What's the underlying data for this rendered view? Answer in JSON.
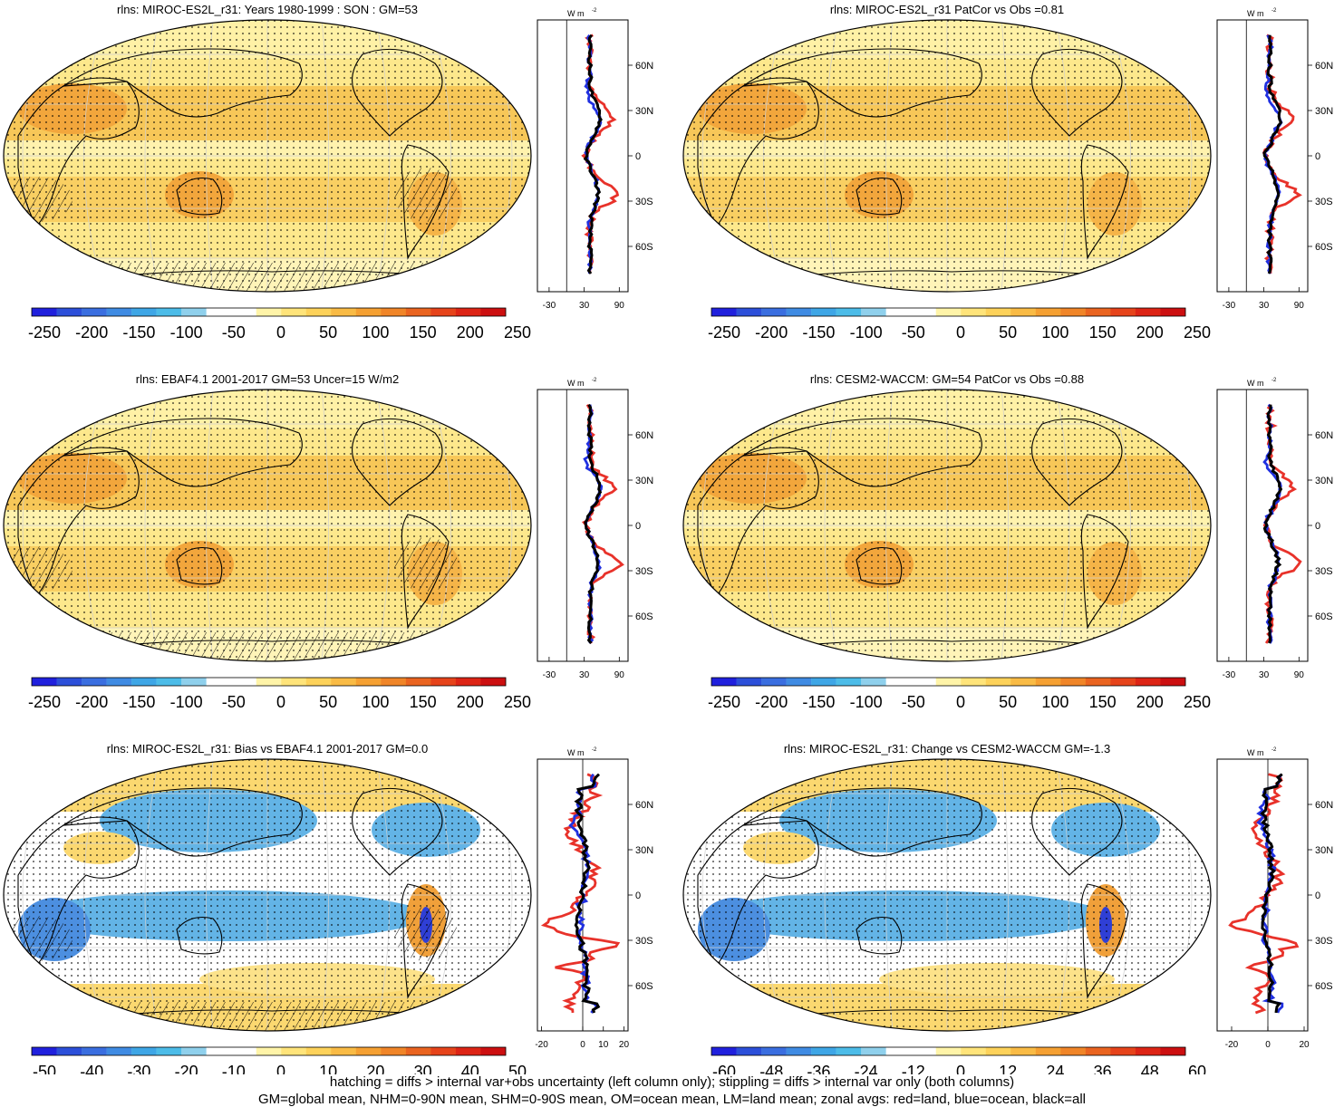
{
  "panels": [
    {
      "title": "rlns: MIROC-ES2L_r31: Years 1980-1999 : SON : GM=53",
      "type": "abs",
      "colorbar_labels": [
        "-250",
        "-200",
        "-150",
        "-100",
        "-50",
        "0",
        "50",
        "100",
        "150",
        "200",
        "250"
      ],
      "zonal": {
        "units": "W m",
        "units_sup": "-2",
        "x_ticks": [
          "-30",
          "30",
          "90"
        ],
        "x_range": [
          -50,
          105
        ],
        "lat_labels": [
          "60N",
          "30N",
          "0",
          "30S",
          "60S"
        ],
        "zero_line": 0
      }
    },
    {
      "title": "rlns: MIROC-ES2L_r31 PatCor vs Obs =0.81",
      "type": "abs",
      "colorbar_labels": [
        "-250",
        "-200",
        "-150",
        "-100",
        "-50",
        "0",
        "50",
        "100",
        "150",
        "200",
        "250"
      ],
      "zonal": {
        "units": "W m",
        "units_sup": "-2",
        "x_ticks": [
          "-30",
          "30",
          "90"
        ],
        "x_range": [
          -50,
          105
        ],
        "lat_labels": [
          "60N",
          "30N",
          "0",
          "30S",
          "60S"
        ],
        "zero_line": 0
      }
    },
    {
      "title": "rlns: EBAF4.1 2001-2017 GM=53 Uncer=15 W/m2",
      "type": "abs",
      "colorbar_labels": [
        "-250",
        "-200",
        "-150",
        "-100",
        "-50",
        "0",
        "50",
        "100",
        "150",
        "200",
        "250"
      ],
      "zonal": {
        "units": "W m",
        "units_sup": "-2",
        "x_ticks": [
          "-30",
          "30",
          "90"
        ],
        "x_range": [
          -50,
          105
        ],
        "lat_labels": [
          "60N",
          "30N",
          "0",
          "30S",
          "60S"
        ],
        "zero_line": 0
      }
    },
    {
      "title": "rlns: CESM2-WACCM: GM=54 PatCor vs Obs =0.88",
      "type": "abs",
      "colorbar_labels": [
        "-250",
        "-200",
        "-150",
        "-100",
        "-50",
        "0",
        "50",
        "100",
        "150",
        "200",
        "250"
      ],
      "zonal": {
        "units": "W m",
        "units_sup": "-2",
        "x_ticks": [
          "-30",
          "30",
          "90"
        ],
        "x_range": [
          -50,
          105
        ],
        "lat_labels": [
          "60N",
          "30N",
          "0",
          "30S",
          "60S"
        ],
        "zero_line": 0
      }
    },
    {
      "title": "rlns: MIROC-ES2L_r31: Bias vs EBAF4.1 2001-2017  GM=0.0",
      "type": "diff",
      "colorbar_labels": [
        "-50",
        "-40",
        "-30",
        "-20",
        "-10",
        "0",
        "10",
        "20",
        "30",
        "40",
        "50"
      ],
      "zonal": {
        "units": "W m",
        "units_sup": "-2",
        "x_ticks": [
          "-20",
          "0",
          "10",
          "20"
        ],
        "x_range": [
          -22,
          22
        ],
        "lat_labels": [
          "60N",
          "30N",
          "0",
          "30S",
          "60S"
        ],
        "zero_line": 0
      }
    },
    {
      "title": "rlns: MIROC-ES2L_r31: Change vs CESM2-WACCM GM=-1.3",
      "type": "diff",
      "colorbar_labels": [
        "-60",
        "-48",
        "-36",
        "-24",
        "-12",
        "0",
        "12",
        "24",
        "36",
        "48",
        "60"
      ],
      "zonal": {
        "units": "W m",
        "units_sup": "-2",
        "x_ticks": [
          "-20",
          "0",
          "20"
        ],
        "x_range": [
          -28,
          22
        ],
        "lat_labels": [
          "60N",
          "30N",
          "0",
          "30S",
          "60S"
        ],
        "zero_line": 0
      }
    }
  ],
  "colors": {
    "colorbar": [
      "#2020dd",
      "#2c4fd9",
      "#3a6ee0",
      "#3f8be3",
      "#3ea6e6",
      "#4cbce8",
      "#8fd0ec",
      "#ffffff",
      "#ffffff",
      "#fff4a8",
      "#ffe47a",
      "#fdd25a",
      "#f9bb45",
      "#f5a032",
      "#f08528",
      "#ea6420",
      "#e6431a",
      "#dd2415",
      "#cc0f10"
    ],
    "land_line": "#e8322a",
    "ocean_line": "#2030e0",
    "all_line": "#000000"
  },
  "footnote": {
    "line1": "hatching = diffs > internal var+obs uncertainty (left column only); stippling = diffs > internal var only (both columns)",
    "line2": "GM=global mean, NHM=0-90N mean, SHM=0-90S mean, OM=ocean mean, LM=land mean; zonal avgs: red=land, blue=ocean, black=all"
  }
}
